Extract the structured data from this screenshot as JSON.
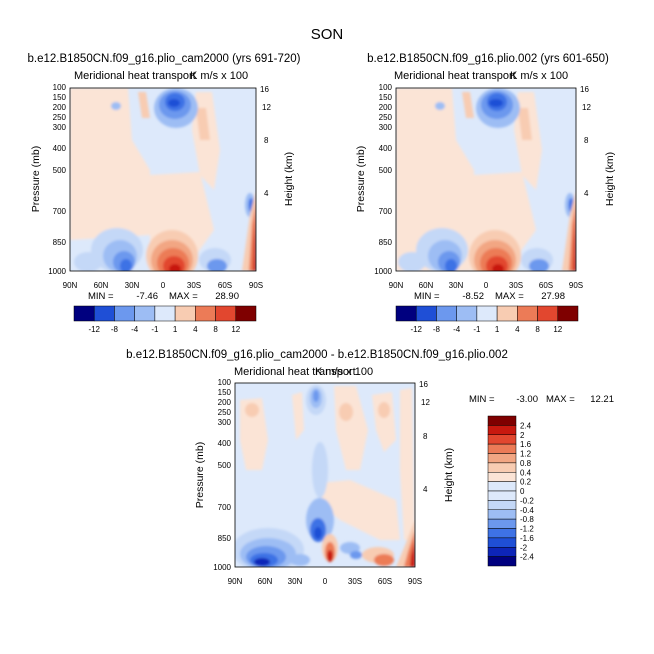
{
  "figure": {
    "season": "SON"
  },
  "chart_data": [
    {
      "type": "heatmap",
      "case_title": "b.e12.B1850CN.f09_g16.plio_cam2000 (yrs 691-720)",
      "variable_title": "Meridional heat transport",
      "units": "K m/s x 100",
      "xlabel": "",
      "ylabel": "Pressure (mb)",
      "y2label": "Height (km)",
      "x_tick_labels": [
        "90N",
        "60N",
        "30N",
        "0",
        "30S",
        "60S",
        "90S"
      ],
      "x_range": [
        90,
        -90
      ],
      "y_tick_labels": [
        "100",
        "150",
        "200",
        "250",
        "300",
        "400",
        "500",
        "700",
        "850",
        "1000"
      ],
      "y_range_mb": [
        1000,
        100
      ],
      "y2_tick_labels": [
        "16",
        "12",
        "8",
        "4"
      ],
      "min_label": "MIN =",
      "min_value": "-7.46",
      "max_label": "MAX =",
      "max_value": "28.90",
      "colorbar_levels": [
        "-12",
        "-8",
        "-4",
        "-1",
        "1",
        "4",
        "8",
        "12"
      ]
    },
    {
      "type": "heatmap",
      "case_title": "b.e12.B1850CN.f09_g16.plio.002 (yrs 601-650)",
      "variable_title": "Meridional heat transport",
      "units": "K m/s x 100",
      "xlabel": "",
      "ylabel": "Pressure (mb)",
      "y2label": "Height (km)",
      "x_tick_labels": [
        "90N",
        "60N",
        "30N",
        "0",
        "30S",
        "60S",
        "90S"
      ],
      "x_range": [
        90,
        -90
      ],
      "y_tick_labels": [
        "100",
        "150",
        "200",
        "250",
        "300",
        "400",
        "500",
        "700",
        "850",
        "1000"
      ],
      "y_range_mb": [
        1000,
        100
      ],
      "y2_tick_labels": [
        "16",
        "12",
        "8",
        "4"
      ],
      "min_label": "MIN =",
      "min_value": "-8.52",
      "max_label": "MAX =",
      "max_value": "27.98",
      "colorbar_levels": [
        "-12",
        "-8",
        "-4",
        "-1",
        "1",
        "4",
        "8",
        "12"
      ]
    },
    {
      "type": "heatmap",
      "case_title": "b.e12.B1850CN.f09_g16.plio_cam2000 - b.e12.B1850CN.f09_g16.plio.002",
      "variable_title": "Meridional heat transport",
      "units": "K m/s x 100",
      "xlabel": "",
      "ylabel": "Pressure (mb)",
      "y2label": "Height (km)",
      "x_tick_labels": [
        "90N",
        "60N",
        "30N",
        "0",
        "30S",
        "60S",
        "90S"
      ],
      "x_range": [
        90,
        -90
      ],
      "y_tick_labels": [
        "100",
        "150",
        "200",
        "250",
        "300",
        "400",
        "500",
        "700",
        "850",
        "1000"
      ],
      "y_range_mb": [
        1000,
        100
      ],
      "y2_tick_labels": [
        "16",
        "12",
        "8",
        "4"
      ],
      "min_label": "MIN =",
      "min_value": "-3.00",
      "max_label": "MAX =",
      "max_value": "12.21",
      "colorbar_levels": [
        "2.4",
        "2",
        "1.6",
        "1.2",
        "0.8",
        "0.4",
        "0.2",
        "0",
        "-0.2",
        "-0.4",
        "-0.8",
        "-1.2",
        "-1.6",
        "-2",
        "-2.4"
      ]
    }
  ],
  "colors": {
    "background": "#ffffff",
    "ramp": [
      "#00007f",
      "#0d25b8",
      "#1f4fd6",
      "#3e72e5",
      "#6c98ee",
      "#9dbdf4",
      "#c4d8f7",
      "#dde9fb",
      "#fbe4d6",
      "#f8ccb2",
      "#f2a683",
      "#ec7b57",
      "#e2472f",
      "#c8190f",
      "#7f0000"
    ]
  }
}
